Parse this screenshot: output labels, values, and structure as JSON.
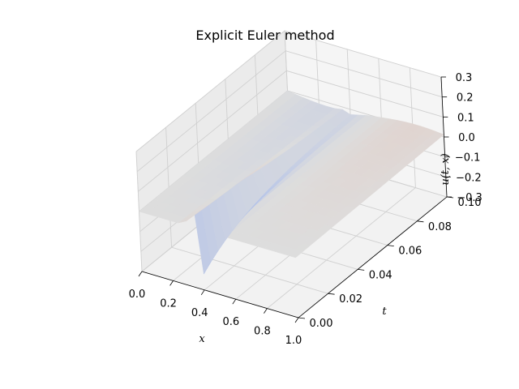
{
  "chart_data": {
    "type": "surface",
    "title": "Explicit Euler method",
    "xlabel": "x",
    "ylabel": "t",
    "zlabel": "u(t, x)",
    "xlim": [
      0.0,
      1.0
    ],
    "ylim": [
      0.0,
      0.1
    ],
    "zlim": [
      -0.3,
      0.3
    ],
    "x_ticks": [
      "0.0",
      "0.2",
      "0.4",
      "0.6",
      "0.8",
      "1.0"
    ],
    "y_ticks": [
      "0.00",
      "0.02",
      "0.04",
      "0.06",
      "0.08",
      "0.10"
    ],
    "z_ticks": [
      "0.3",
      "0.2",
      "0.1",
      "0.0",
      "−0.1",
      "−0.2",
      "−0.3"
    ],
    "grid": true,
    "colormap": "coolwarm",
    "surface_grid": {
      "x": [
        0.0,
        0.05,
        0.1,
        0.15,
        0.2,
        0.25,
        0.3,
        0.35,
        0.4,
        0.45,
        0.5,
        0.55,
        0.6,
        0.65,
        0.7,
        0.75,
        0.8,
        0.85,
        0.9,
        0.95,
        1.0
      ],
      "t": [
        0.0,
        0.005,
        0.01,
        0.015,
        0.02,
        0.025,
        0.03,
        0.035,
        0.04,
        0.045,
        0.05,
        0.055,
        0.06,
        0.065,
        0.07,
        0.075,
        0.08,
        0.085,
        0.09,
        0.095,
        0.1
      ],
      "peak_u": 0.15,
      "trough_u": -0.22,
      "peak_x": 0.4,
      "edge_oscillation_u": 0.02
    }
  }
}
